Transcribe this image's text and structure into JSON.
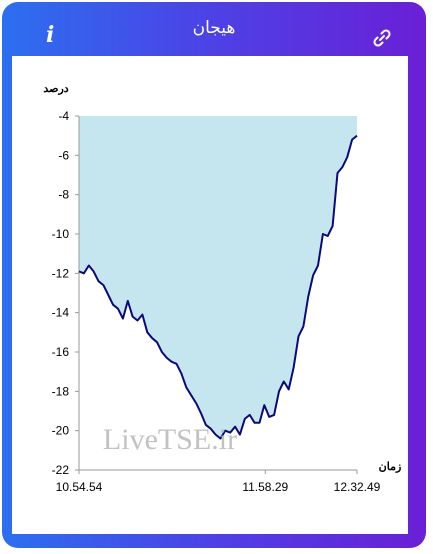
{
  "header": {
    "title": "هیجان",
    "info_icon": "info-icon",
    "link_icon": "link-icon"
  },
  "colors": {
    "header_gradient_start": "#2c6ff0",
    "header_gradient_end": "#6a1fd6",
    "area_fill": "#c6e6ef",
    "line": "#0a0a7a"
  },
  "chart_data": {
    "type": "area",
    "ylabel": "درصد",
    "xlabel": "زمان",
    "ylim": [
      -22,
      -4
    ],
    "yticks": [
      -4,
      -6,
      -8,
      -10,
      -12,
      -14,
      -16,
      -18,
      -20,
      -22
    ],
    "xtick_labels": [
      "10.54.54",
      "11.58.29",
      "12.32.49"
    ],
    "watermark": "LiveTSE.ir",
    "series": [
      {
        "values": [
          -11.9,
          -12.0,
          -11.6,
          -11.9,
          -12.4,
          -12.6,
          -13.1,
          -13.6,
          -13.8,
          -14.3,
          -13.4,
          -14.2,
          -14.4,
          -14.1,
          -15.0,
          -15.3,
          -15.5,
          -16.0,
          -16.3,
          -16.5,
          -16.6,
          -17.1,
          -17.8,
          -18.2,
          -18.6,
          -19.1,
          -19.7,
          -19.9,
          -20.2,
          -20.4,
          -20.0,
          -20.1,
          -19.8,
          -20.2,
          -19.4,
          -19.2,
          -19.6,
          -19.6,
          -18.7,
          -19.3,
          -19.2,
          -18.0,
          -17.5,
          -17.9,
          -16.8,
          -15.2,
          -14.7,
          -13.2,
          -12.1,
          -11.6,
          -10.0,
          -10.1,
          -9.6,
          -6.9,
          -6.6,
          -6.1,
          -5.2,
          -5.0
        ]
      }
    ]
  }
}
